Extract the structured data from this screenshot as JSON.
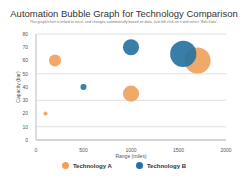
{
  "chart_data": {
    "type": "bubble",
    "title": "Automation Bubble Graph for Technology Comparison",
    "subtitle": "This graph/chart is linked to excel, and changes automatically based on data. Just left click on it and select \"Edit Data\".",
    "x_label": "Range (miles)",
    "y_label": "Capacity (bar)",
    "xlim": [
      0,
      2000
    ],
    "xticks": [
      0,
      500,
      1000,
      1500,
      2000
    ],
    "ylim": [
      0,
      80
    ],
    "yticks": [
      0,
      10,
      20,
      30,
      40,
      50,
      60,
      70,
      80
    ],
    "grid": true,
    "legend": "bottom",
    "series": [
      {
        "name": "Technology A",
        "color": "#f0a05a",
        "x": [
          200,
          100,
          1000,
          1700
        ],
        "values": [
          60,
          20,
          35,
          60
        ],
        "sizes": [
          36,
          4,
          64,
          169
        ]
      },
      {
        "name": "Technology B",
        "color": "#2470a0",
        "x": [
          500,
          1000,
          1550
        ],
        "values": [
          40,
          70,
          65
        ],
        "sizes": [
          9,
          64,
          169
        ]
      }
    ]
  }
}
